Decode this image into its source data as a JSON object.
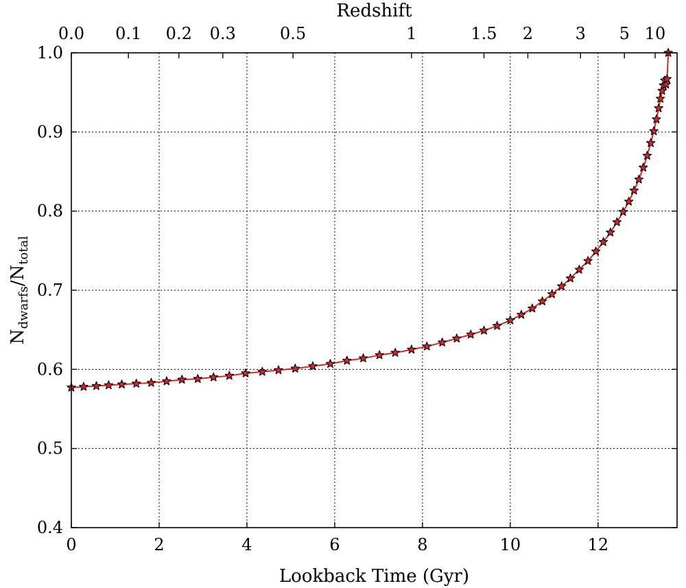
{
  "chart_data": {
    "type": "line",
    "xlabel": "Lookback Time (Gyr)",
    "ylabel_main": "N",
    "ylabel_sub1": "dwarfs",
    "ylabel_sep": "/N",
    "ylabel_sub2": "total",
    "top_axis_label": "Redshift",
    "xlim": [
      0,
      13.8
    ],
    "ylim": [
      0.4,
      1.0
    ],
    "grid": true,
    "x_ticks": [
      0,
      2,
      4,
      6,
      8,
      10,
      12
    ],
    "x_tick_labels": [
      "0",
      "2",
      "4",
      "6",
      "8",
      "10",
      "12"
    ],
    "y_ticks": [
      0.4,
      0.5,
      0.6,
      0.7,
      0.8,
      0.9,
      1.0
    ],
    "y_tick_labels": [
      "0.4",
      "0.5",
      "0.6",
      "0.7",
      "0.8",
      "0.9",
      "1.0"
    ],
    "top_ticks": [
      {
        "label": "0.0",
        "x": 0.0
      },
      {
        "label": "0.1",
        "x": 1.3
      },
      {
        "label": "0.2",
        "x": 2.45
      },
      {
        "label": "0.3",
        "x": 3.45
      },
      {
        "label": "0.5",
        "x": 5.05
      },
      {
        "label": "1",
        "x": 7.75
      },
      {
        "label": "1.5",
        "x": 9.4
      },
      {
        "label": "2",
        "x": 10.4
      },
      {
        "label": "3",
        "x": 11.6
      },
      {
        "label": "5",
        "x": 12.6
      },
      {
        "label": "10",
        "x": 13.3
      }
    ],
    "series": [
      {
        "line_color": "#d62728",
        "marker": "star",
        "marker_fill": "#d62728",
        "marker_edge": "#000000",
        "points": [
          [
            0.0,
            0.577
          ],
          [
            0.28,
            0.578
          ],
          [
            0.57,
            0.579
          ],
          [
            0.85,
            0.58
          ],
          [
            1.15,
            0.581
          ],
          [
            1.48,
            0.582
          ],
          [
            1.82,
            0.583
          ],
          [
            2.17,
            0.585
          ],
          [
            2.52,
            0.587
          ],
          [
            2.88,
            0.588
          ],
          [
            3.24,
            0.59
          ],
          [
            3.6,
            0.592
          ],
          [
            3.97,
            0.595
          ],
          [
            4.35,
            0.597
          ],
          [
            4.72,
            0.599
          ],
          [
            5.1,
            0.601
          ],
          [
            5.5,
            0.604
          ],
          [
            5.9,
            0.607
          ],
          [
            6.28,
            0.611
          ],
          [
            6.65,
            0.614
          ],
          [
            7.02,
            0.618
          ],
          [
            7.38,
            0.621
          ],
          [
            7.75,
            0.625
          ],
          [
            8.1,
            0.629
          ],
          [
            8.45,
            0.634
          ],
          [
            8.78,
            0.639
          ],
          [
            9.1,
            0.644
          ],
          [
            9.4,
            0.649
          ],
          [
            9.7,
            0.655
          ],
          [
            10.0,
            0.662
          ],
          [
            10.25,
            0.669
          ],
          [
            10.5,
            0.677
          ],
          [
            10.73,
            0.686
          ],
          [
            10.95,
            0.695
          ],
          [
            11.17,
            0.705
          ],
          [
            11.37,
            0.715
          ],
          [
            11.57,
            0.726
          ],
          [
            11.77,
            0.737
          ],
          [
            11.95,
            0.749
          ],
          [
            12.12,
            0.761
          ],
          [
            12.28,
            0.773
          ],
          [
            12.43,
            0.786
          ],
          [
            12.57,
            0.799
          ],
          [
            12.7,
            0.812
          ],
          [
            12.82,
            0.826
          ],
          [
            12.93,
            0.84
          ],
          [
            13.03,
            0.855
          ],
          [
            13.12,
            0.87
          ],
          [
            13.2,
            0.886
          ],
          [
            13.27,
            0.901
          ],
          [
            13.33,
            0.916
          ],
          [
            13.38,
            0.93
          ],
          [
            13.42,
            0.942
          ],
          [
            13.46,
            0.952
          ],
          [
            13.49,
            0.959
          ],
          [
            13.52,
            0.965
          ],
          [
            13.55,
            0.96
          ],
          [
            13.57,
            0.967
          ],
          [
            13.6,
            1.0
          ]
        ]
      }
    ]
  }
}
